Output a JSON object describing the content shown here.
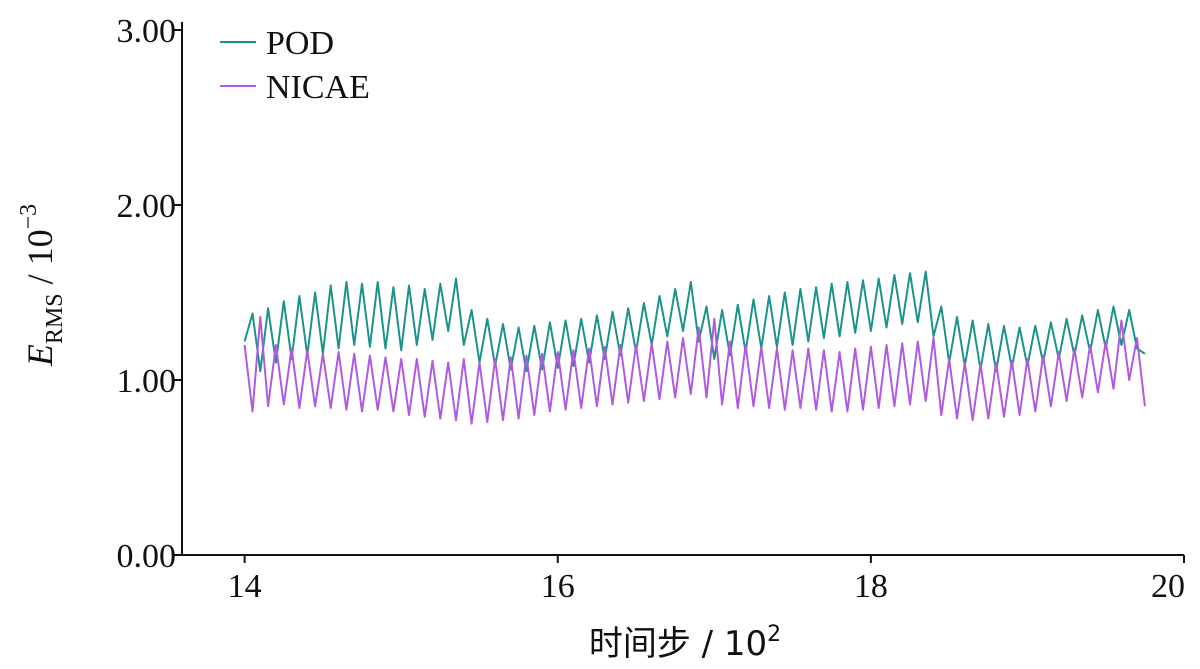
{
  "chart_data": {
    "type": "line",
    "title": "",
    "xlabel": {
      "text": "时间步 / 10",
      "sup": "2"
    },
    "ylabel": {
      "symbol": "E",
      "sub": "RMS",
      "text": " / 10",
      "sup": "−3"
    },
    "xlim": [
      13.6,
      20
    ],
    "ylim": [
      0,
      3
    ],
    "xticks": [
      "14",
      "16",
      "18",
      "20"
    ],
    "yticks": [
      "0.00",
      "1.00",
      "2.00",
      "3.00"
    ],
    "grid": false,
    "legend_position": "top-left",
    "series": [
      {
        "name": "POD",
        "color": "#1a9488",
        "x": [
          14.0,
          14.05,
          14.1,
          14.15,
          14.2,
          14.25,
          14.3,
          14.35,
          14.4,
          14.45,
          14.5,
          14.55,
          14.6,
          14.65,
          14.7,
          14.75,
          14.8,
          14.85,
          14.9,
          14.95,
          15.0,
          15.05,
          15.1,
          15.15,
          15.2,
          15.25,
          15.3,
          15.35,
          15.4,
          15.45,
          15.5,
          15.55,
          15.6,
          15.65,
          15.7,
          15.75,
          15.8,
          15.85,
          15.9,
          15.95,
          16.0,
          16.05,
          16.1,
          16.15,
          16.2,
          16.25,
          16.3,
          16.35,
          16.4,
          16.45,
          16.5,
          16.55,
          16.6,
          16.65,
          16.7,
          16.75,
          16.8,
          16.85,
          16.9,
          16.95,
          17.0,
          17.05,
          17.1,
          17.15,
          17.2,
          17.25,
          17.3,
          17.35,
          17.4,
          17.45,
          17.5,
          17.55,
          17.6,
          17.65,
          17.7,
          17.75,
          17.8,
          17.85,
          17.9,
          17.95,
          18.0,
          18.05,
          18.1,
          18.15,
          18.2,
          18.25,
          18.3,
          18.35,
          18.4,
          18.45,
          18.5,
          18.55,
          18.6,
          18.65,
          18.7,
          18.75,
          18.8,
          18.85,
          18.9,
          18.95,
          19.0,
          19.05,
          19.1,
          19.15,
          19.2,
          19.25,
          19.3,
          19.35,
          19.4,
          19.45,
          19.5,
          19.55,
          19.6,
          19.65,
          19.7,
          19.75
        ],
        "y": [
          1.22,
          1.38,
          1.05,
          1.41,
          1.1,
          1.45,
          1.12,
          1.48,
          1.14,
          1.5,
          1.15,
          1.54,
          1.18,
          1.56,
          1.2,
          1.55,
          1.19,
          1.56,
          1.18,
          1.53,
          1.17,
          1.54,
          1.2,
          1.52,
          1.23,
          1.55,
          1.28,
          1.58,
          1.2,
          1.4,
          1.1,
          1.35,
          1.08,
          1.32,
          1.06,
          1.3,
          1.05,
          1.31,
          1.06,
          1.33,
          1.07,
          1.34,
          1.08,
          1.35,
          1.1,
          1.37,
          1.12,
          1.39,
          1.14,
          1.41,
          1.16,
          1.44,
          1.2,
          1.48,
          1.25,
          1.52,
          1.28,
          1.56,
          1.22,
          1.42,
          1.12,
          1.4,
          1.14,
          1.43,
          1.16,
          1.46,
          1.18,
          1.48,
          1.19,
          1.5,
          1.2,
          1.52,
          1.22,
          1.53,
          1.24,
          1.55,
          1.25,
          1.56,
          1.27,
          1.57,
          1.28,
          1.58,
          1.3,
          1.6,
          1.32,
          1.61,
          1.33,
          1.62,
          1.25,
          1.42,
          1.1,
          1.36,
          1.08,
          1.34,
          1.06,
          1.32,
          1.05,
          1.31,
          1.07,
          1.3,
          1.08,
          1.31,
          1.1,
          1.33,
          1.12,
          1.35,
          1.14,
          1.37,
          1.16,
          1.4,
          1.18,
          1.42,
          1.2,
          1.4,
          1.18,
          1.15
        ]
      },
      {
        "name": "NICAE",
        "color": "#b05ae0",
        "x": [
          14.0,
          14.05,
          14.1,
          14.15,
          14.2,
          14.25,
          14.3,
          14.35,
          14.4,
          14.45,
          14.5,
          14.55,
          14.6,
          14.65,
          14.7,
          14.75,
          14.8,
          14.85,
          14.9,
          14.95,
          15.0,
          15.05,
          15.1,
          15.15,
          15.2,
          15.25,
          15.3,
          15.35,
          15.4,
          15.45,
          15.5,
          15.55,
          15.6,
          15.65,
          15.7,
          15.75,
          15.8,
          15.85,
          15.9,
          15.95,
          16.0,
          16.05,
          16.1,
          16.15,
          16.2,
          16.25,
          16.3,
          16.35,
          16.4,
          16.45,
          16.5,
          16.55,
          16.6,
          16.65,
          16.7,
          16.75,
          16.8,
          16.85,
          16.9,
          16.95,
          17.0,
          17.05,
          17.1,
          17.15,
          17.2,
          17.25,
          17.3,
          17.35,
          17.4,
          17.45,
          17.5,
          17.55,
          17.6,
          17.65,
          17.7,
          17.75,
          17.8,
          17.85,
          17.9,
          17.95,
          18.0,
          18.05,
          18.1,
          18.15,
          18.2,
          18.25,
          18.3,
          18.35,
          18.4,
          18.45,
          18.5,
          18.55,
          18.6,
          18.65,
          18.7,
          18.75,
          18.8,
          18.85,
          18.9,
          18.95,
          19.0,
          19.05,
          19.1,
          19.15,
          19.2,
          19.25,
          19.3,
          19.35,
          19.4,
          19.45,
          19.5,
          19.55,
          19.6,
          19.65,
          19.7,
          19.75
        ],
        "y": [
          1.2,
          0.82,
          1.36,
          0.85,
          1.2,
          0.86,
          1.18,
          0.84,
          1.17,
          0.85,
          1.15,
          0.84,
          1.16,
          0.83,
          1.15,
          0.82,
          1.14,
          0.83,
          1.13,
          0.82,
          1.12,
          0.8,
          1.12,
          0.79,
          1.11,
          0.78,
          1.1,
          0.77,
          1.12,
          0.75,
          1.1,
          0.76,
          1.12,
          0.77,
          1.13,
          0.78,
          1.14,
          0.8,
          1.15,
          0.82,
          1.16,
          0.83,
          1.17,
          0.84,
          1.18,
          0.85,
          1.19,
          0.86,
          1.2,
          0.87,
          1.2,
          0.88,
          1.21,
          0.89,
          1.22,
          0.9,
          1.24,
          0.92,
          1.3,
          0.9,
          1.35,
          0.86,
          1.22,
          0.84,
          1.2,
          0.85,
          1.19,
          0.84,
          1.18,
          0.83,
          1.17,
          0.84,
          1.18,
          0.83,
          1.17,
          0.82,
          1.16,
          0.82,
          1.18,
          0.83,
          1.19,
          0.84,
          1.2,
          0.85,
          1.21,
          0.86,
          1.22,
          0.88,
          1.24,
          0.8,
          1.12,
          0.78,
          1.1,
          0.77,
          1.09,
          0.78,
          1.1,
          0.79,
          1.11,
          0.8,
          1.12,
          0.82,
          1.14,
          0.85,
          1.16,
          0.88,
          1.18,
          0.9,
          1.2,
          0.93,
          1.22,
          0.95,
          1.34,
          1.0,
          1.24,
          0.85
        ]
      }
    ]
  }
}
